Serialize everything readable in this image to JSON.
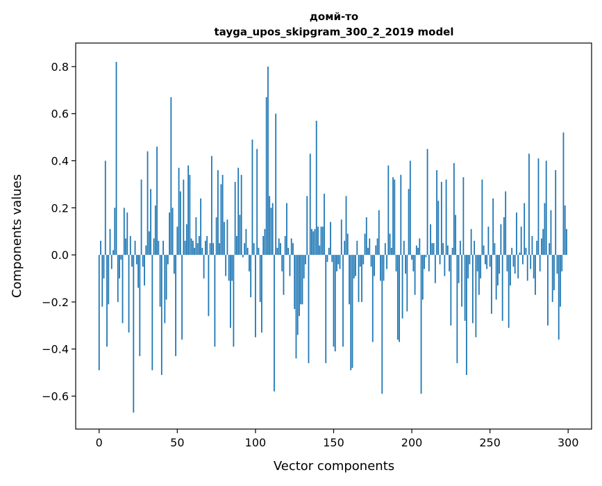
{
  "chart_data": {
    "type": "bar",
    "title": "домй-то",
    "subtitle": "tayga_upos_skipgram_300_2_2019 model",
    "xlabel": "Vector components",
    "ylabel": "Components values",
    "xlim": [
      -15,
      315
    ],
    "ylim": [
      -0.74,
      0.9
    ],
    "xticks": [
      0,
      50,
      100,
      150,
      200,
      250,
      300
    ],
    "xtick_labels": [
      "0",
      "50",
      "100",
      "150",
      "200",
      "250",
      "300"
    ],
    "yticks": [
      -0.6,
      -0.4,
      -0.2,
      0.0,
      0.2,
      0.4,
      0.6,
      0.8
    ],
    "ytick_labels": [
      "−0.6",
      "−0.4",
      "−0.2",
      "0.0",
      "0.2",
      "0.4",
      "0.6",
      "0.8"
    ],
    "grid": false,
    "bar_color": "#1f77b4",
    "x_start": 0,
    "values": [
      -0.49,
      0.06,
      -0.22,
      -0.1,
      0.4,
      -0.39,
      -0.21,
      0.11,
      -0.06,
      0.02,
      0.2,
      0.82,
      -0.2,
      -0.1,
      -0.02,
      -0.29,
      0.2,
      0.07,
      0.18,
      -0.33,
      0.08,
      -0.05,
      -0.67,
      0.06,
      -0.04,
      -0.14,
      -0.43,
      0.32,
      -0.05,
      -0.13,
      0.04,
      0.44,
      0.1,
      0.28,
      -0.49,
      0.07,
      0.21,
      0.46,
      0.06,
      -0.22,
      -0.51,
      0.06,
      -0.29,
      -0.19,
      -0.04,
      0.18,
      0.67,
      0.2,
      -0.08,
      -0.43,
      0.12,
      0.37,
      0.27,
      -0.36,
      0.32,
      0.06,
      0.13,
      0.38,
      0.34,
      0.07,
      0.06,
      0.03,
      0.16,
      0.05,
      0.08,
      0.24,
      0.03,
      -0.1,
      0.06,
      0.08,
      -0.26,
      0.05,
      0.42,
      0.05,
      -0.39,
      0.16,
      0.36,
      0.05,
      0.3,
      0.34,
      0.14,
      -0.09,
      0.15,
      -0.11,
      -0.31,
      -0.11,
      -0.39,
      0.31,
      0.08,
      0.37,
      0.17,
      0.34,
      -0.01,
      0.05,
      0.11,
      0.03,
      -0.07,
      -0.18,
      0.49,
      0.05,
      -0.35,
      0.45,
      0.03,
      -0.2,
      -0.33,
      0.08,
      0.11,
      0.67,
      0.8,
      0.25,
      0.2,
      0.22,
      -0.58,
      0.6,
      0.03,
      0.07,
      0.05,
      -0.07,
      -0.17,
      0.08,
      0.22,
      0.03,
      -0.09,
      0.07,
      0.05,
      -0.23,
      -0.44,
      -0.34,
      -0.26,
      -0.21,
      -0.21,
      -0.1,
      -0.04,
      0.25,
      -0.46,
      0.43,
      0.11,
      0.1,
      0.11,
      0.57,
      0.12,
      0.04,
      0.12,
      0.12,
      0.26,
      -0.46,
      -0.03,
      0.03,
      0.14,
      -0.03,
      -0.39,
      -0.41,
      -0.07,
      -0.04,
      -0.06,
      0.15,
      -0.39,
      0.06,
      0.25,
      0.09,
      -0.21,
      -0.49,
      -0.48,
      -0.1,
      -0.09,
      0.06,
      -0.2,
      -0.05,
      -0.2,
      -0.04,
      0.09,
      0.16,
      0.03,
      0.07,
      -0.05,
      -0.37,
      -0.09,
      0.04,
      0.07,
      0.19,
      -0.11,
      -0.59,
      -0.11,
      0.05,
      -0.06,
      0.38,
      0.09,
      0.03,
      0.33,
      0.32,
      -0.07,
      -0.36,
      -0.37,
      0.34,
      -0.27,
      0.06,
      -0.08,
      -0.24,
      0.28,
      0.4,
      -0.02,
      -0.07,
      -0.17,
      0.04,
      0.03,
      0.07,
      -0.59,
      -0.19,
      -0.06,
      -0.01,
      0.45,
      -0.07,
      0.13,
      0.05,
      0.05,
      -0.12,
      0.36,
      0.23,
      -0.04,
      0.31,
      0.05,
      -0.09,
      0.32,
      0.04,
      -0.07,
      -0.3,
      0.03,
      0.39,
      0.17,
      -0.46,
      -0.12,
      0.06,
      -0.22,
      0.33,
      -0.28,
      -0.51,
      -0.1,
      -0.04,
      0.11,
      -0.29,
      0.06,
      -0.35,
      -0.07,
      -0.17,
      -0.1,
      0.32,
      0.04,
      -0.04,
      -0.06,
      0.12,
      -0.05,
      -0.25,
      0.24,
      0.05,
      -0.19,
      -0.13,
      -0.08,
      0.13,
      -0.28,
      0.16,
      0.27,
      -0.07,
      -0.31,
      -0.13,
      0.03,
      -0.05,
      -0.08,
      0.18,
      -0.1,
      0.01,
      0.12,
      -0.04,
      0.22,
      0.03,
      -0.11,
      0.43,
      -0.06,
      0.08,
      -0.1,
      -0.17,
      0.06,
      0.41,
      -0.07,
      0.07,
      0.11,
      0.22,
      0.4,
      -0.3,
      0.05,
      0.19,
      -0.2,
      -0.15,
      0.36,
      -0.08,
      -0.36,
      -0.22,
      -0.07,
      0.52,
      0.21,
      0.11
    ]
  }
}
